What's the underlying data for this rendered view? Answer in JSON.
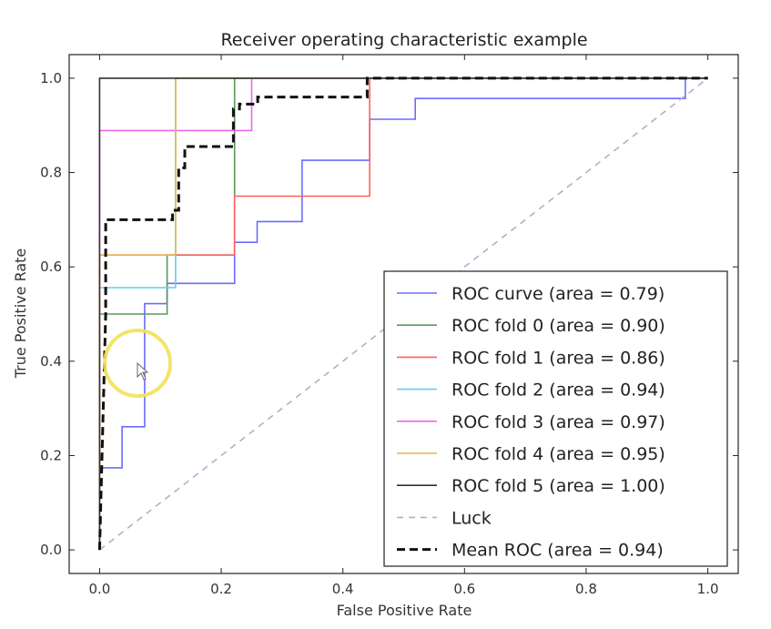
{
  "chart_data": {
    "type": "line",
    "title": "Receiver operating characteristic example",
    "xlabel": "False Positive Rate",
    "ylabel": "True Positive Rate",
    "xlim": [
      -0.05,
      1.05
    ],
    "ylim": [
      -0.05,
      1.05
    ],
    "xticks": [
      "0.0",
      "0.2",
      "0.4",
      "0.6",
      "0.8",
      "1.0"
    ],
    "yticks": [
      "0.0",
      "0.2",
      "0.4",
      "0.6",
      "0.8",
      "1.0"
    ],
    "grid": false,
    "legend_position": "lower right",
    "series": [
      {
        "name": "ROC curve (area = 0.79)",
        "color": "#6b6bff",
        "style": "solid",
        "x": [
          0,
          0,
          0.037,
          0.037,
          0.074,
          0.074,
          0.111,
          0.111,
          0.148,
          0.148,
          0.222,
          0.222,
          0.259,
          0.259,
          0.333,
          0.333,
          0.444,
          0.444,
          0.519,
          0.519,
          0.963,
          0.963,
          1.0
        ],
        "y": [
          0,
          0.174,
          0.174,
          0.261,
          0.261,
          0.522,
          0.522,
          0.565,
          0.565,
          0.565,
          0.565,
          0.652,
          0.652,
          0.696,
          0.696,
          0.826,
          0.826,
          0.913,
          0.913,
          0.957,
          0.957,
          1.0,
          1.0
        ]
      },
      {
        "name": "ROC fold 0 (area = 0.90)",
        "color": "#5a9a5a",
        "style": "solid",
        "x": [
          0,
          0,
          0.111,
          0.111,
          0.222,
          0.222,
          1.0
        ],
        "y": [
          0,
          0.5,
          0.5,
          0.625,
          0.625,
          1.0,
          1.0
        ]
      },
      {
        "name": "ROC fold 1 (area = 0.86)",
        "color": "#ff6060",
        "style": "solid",
        "x": [
          0,
          0,
          0.222,
          0.222,
          0.444,
          0.444,
          1.0
        ],
        "y": [
          0,
          0.625,
          0.625,
          0.75,
          0.75,
          1.0,
          1.0
        ]
      },
      {
        "name": "ROC fold 2 (area = 0.94)",
        "color": "#66ccee",
        "style": "solid",
        "x": [
          0,
          0,
          0.125,
          0.125,
          1.0
        ],
        "y": [
          0,
          0.556,
          0.556,
          1.0,
          1.0
        ]
      },
      {
        "name": "ROC fold 3 (area = 0.97)",
        "color": "#ee66ee",
        "style": "solid",
        "x": [
          0,
          0,
          0.25,
          0.25,
          1.0
        ],
        "y": [
          0,
          0.889,
          0.889,
          1.0,
          1.0
        ]
      },
      {
        "name": "ROC fold 4 (area = 0.95)",
        "color": "#e5b847",
        "style": "solid",
        "x": [
          0,
          0,
          0.125,
          0.125,
          1.0
        ],
        "y": [
          0,
          0.625,
          0.625,
          1.0,
          1.0
        ]
      },
      {
        "name": "ROC fold 5 (area = 1.00)",
        "color": "#333333",
        "style": "solid",
        "x": [
          0,
          0,
          1.0
        ],
        "y": [
          0,
          1.0,
          1.0
        ]
      },
      {
        "name": "Luck",
        "color": "#c0a8c8",
        "style": "dashed",
        "x": [
          0,
          1.0
        ],
        "y": [
          0,
          1.0
        ]
      },
      {
        "name": "Mean ROC (area = 0.94)",
        "color": "#111111",
        "style": "bold-dashed",
        "x": [
          0,
          0.01,
          0.01,
          0.12,
          0.12,
          0.13,
          0.13,
          0.14,
          0.14,
          0.22,
          0.22,
          0.23,
          0.23,
          0.26,
          0.26,
          0.44,
          0.44,
          1.0
        ],
        "y": [
          0,
          0.5,
          0.7,
          0.7,
          0.72,
          0.72,
          0.81,
          0.81,
          0.855,
          0.855,
          0.935,
          0.935,
          0.945,
          0.945,
          0.96,
          0.96,
          1.0,
          1.0
        ]
      }
    ]
  }
}
